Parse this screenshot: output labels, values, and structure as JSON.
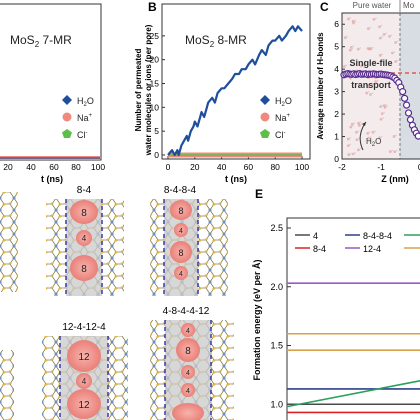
{
  "panels": {
    "b": {
      "letter": "B"
    },
    "c": {
      "letter": "C"
    },
    "e": {
      "letter": "E"
    }
  },
  "panel_a_partial": {
    "title_main": "MoS",
    "title_sub": "2",
    "title_rest": " 7-MR",
    "legend": [
      {
        "label": "H",
        "sub": "2",
        "rest": "O",
        "color": "#1f4e9c",
        "shape": "diamond"
      },
      {
        "label": "Na",
        "sup": "+",
        "color": "#f08a7e",
        "shape": "hexagon"
      },
      {
        "label": "Cl",
        "sup": "-",
        "color": "#5cbf4a",
        "shape": "pentagon"
      }
    ],
    "x_ticks": [
      "20",
      "40",
      "60",
      "80",
      "100"
    ],
    "xlabel": "t (ns)"
  },
  "structure_labels": {
    "col1": [
      {
        "title": "8-4",
        "rings": [
          "8",
          "4",
          "8"
        ]
      },
      {
        "title": "12-4-12-4",
        "rings": [
          "12",
          "4",
          "12"
        ]
      }
    ],
    "col2": [
      {
        "title": "8-4-8-4",
        "rings": [
          "8",
          "4",
          "8",
          "4"
        ]
      },
      {
        "title": "4-8-4-4-12",
        "rings": [
          "4",
          "8",
          "4",
          "4"
        ]
      }
    ]
  },
  "panel_c_partial": {
    "ylabel": "Average number of H-bonds",
    "y_ticks": [
      "0",
      "1",
      "2",
      "3",
      "4",
      "5",
      "6"
    ],
    "x_ticks": [
      "-2",
      "-1",
      "0"
    ],
    "xlabel": "Z (nm)",
    "header_left": "Pure water",
    "header_right": "Mo",
    "annotation": "Single-file water transport",
    "annotation_lines": [
      "Single-file",
      "water",
      "transport"
    ],
    "molecule_label": "H",
    "molecule_sub": "2",
    "molecule_rest": "O"
  },
  "panel_e_partial": {
    "ylabel": "Formation energy (eV per Å)",
    "y_ticks": [
      "1.0",
      "1.5",
      "2.0",
      "2.5"
    ],
    "legend": [
      {
        "label": "4",
        "color": "#1f4e9c"
      },
      {
        "label": "8-4",
        "color": "#e02020"
      },
      {
        "label": "8-4-8-4",
        "color": "#2f3f8f"
      },
      {
        "label": "12-4",
        "color": "#9b59c6"
      }
    ]
  },
  "chart_data": [
    {
      "id": "panel-b",
      "type": "line",
      "title": "MoS2 8-MR",
      "title_parts": {
        "main": "MoS",
        "sub": "2",
        "rest": " 8-MR"
      },
      "xlabel": "t (ns)",
      "ylabel_lines": [
        "Number of permeated",
        "water molecules or ions (per pore)"
      ],
      "xlim": [
        0,
        100
      ],
      "ylim": [
        0,
        30
      ],
      "x_ticks": [
        0,
        20,
        40,
        60,
        80,
        100
      ],
      "y_ticks": [
        0,
        5,
        10,
        15,
        20,
        25
      ],
      "legend_position": "right",
      "series": [
        {
          "name": "H2O",
          "color": "#1f4e9c",
          "marker": "diamond",
          "x": [
            0,
            3,
            5,
            7,
            8,
            10,
            12,
            14,
            15,
            17,
            19,
            20,
            22,
            24,
            25,
            27,
            29,
            30,
            33,
            35,
            37,
            40,
            42,
            45,
            48,
            50,
            53,
            55,
            58,
            60,
            63,
            65,
            68,
            70,
            73,
            75,
            78,
            80,
            83,
            85,
            88,
            90,
            93,
            95,
            97,
            100
          ],
          "y": [
            0,
            1,
            0,
            1,
            0,
            2,
            3,
            4,
            3,
            5,
            6,
            7,
            6,
            8,
            9,
            8,
            10,
            11,
            12,
            11,
            13,
            14,
            14,
            15,
            16,
            17,
            17,
            18,
            18,
            19,
            20,
            19,
            21,
            22,
            21,
            23,
            24,
            24,
            25,
            24,
            25,
            26,
            27,
            26,
            27,
            26
          ]
        },
        {
          "name": "Na+",
          "color": "#f08a7e",
          "marker": "hexagon",
          "x": [
            0,
            100
          ],
          "y": [
            0,
            0
          ]
        },
        {
          "name": "Cl-",
          "color": "#5cbf4a",
          "marker": "pentagon",
          "x": [
            0,
            100
          ],
          "y": [
            0,
            0
          ]
        }
      ]
    },
    {
      "id": "panel-c",
      "type": "scatter",
      "xlabel": "Z (nm)",
      "ylabel": "Average number of H-bonds",
      "xlim": [
        -2,
        0.3
      ],
      "ylim": [
        0,
        6.5
      ],
      "series": [
        {
          "color": "#5a2d91",
          "x": [
            -1.95,
            -1.9,
            -1.85,
            -1.8,
            -1.75,
            -1.7,
            -1.65,
            -1.6,
            -1.55,
            -1.5,
            -1.45,
            -1.4,
            -1.35,
            -1.3,
            -1.25,
            -1.2,
            -1.15,
            -1.1,
            -1.05,
            -1.0,
            -0.95,
            -0.9,
            -0.85,
            -0.8,
            -0.75,
            -0.7,
            -0.65,
            -0.6,
            -0.55,
            -0.5,
            -0.45,
            -0.4,
            -0.35,
            -0.3,
            -0.25,
            -0.2,
            -0.15,
            -0.1,
            -0.05,
            0.0,
            0.05,
            0.1,
            0.15,
            0.2
          ],
          "y": [
            3.75,
            3.78,
            3.8,
            3.78,
            3.77,
            3.79,
            3.76,
            3.78,
            3.8,
            3.77,
            3.78,
            3.79,
            3.76,
            3.78,
            3.77,
            3.79,
            3.78,
            3.76,
            3.77,
            3.78,
            3.76,
            3.75,
            3.74,
            3.72,
            3.7,
            3.65,
            3.6,
            3.5,
            3.4,
            3.2,
            3.0,
            2.7,
            2.4,
            2.05,
            1.75,
            1.5,
            1.3,
            1.15,
            1.02,
            0.95,
            0.9,
            0.88,
            0.87,
            0.86
          ]
        }
      ]
    },
    {
      "id": "panel-e",
      "type": "line",
      "ylabel": "Formation energy (eV per Å)",
      "ylim": [
        0.9,
        2.5
      ],
      "xlim": [
        0,
        1
      ],
      "series": [
        {
          "name": "4",
          "color": "#4a4a4a",
          "x": [
            0,
            1
          ],
          "y": [
            1.0,
            1.0
          ]
        },
        {
          "name": "8-4",
          "color": "#e02020",
          "x": [
            0,
            1
          ],
          "y": [
            0.93,
            0.93
          ]
        },
        {
          "name": "8-4-8-4",
          "color": "#2f3f8f",
          "x": [
            0,
            1
          ],
          "y": [
            1.13,
            1.13
          ]
        },
        {
          "name": "12-4",
          "color": "#9b59c6",
          "x": [
            0,
            1
          ],
          "y": [
            2.03,
            2.03
          ]
        },
        {
          "color": "#d9a24a",
          "x": [
            0,
            1
          ],
          "y": [
            1.6,
            1.6
          ]
        },
        {
          "color": "#d9a24a",
          "x": [
            0,
            1
          ],
          "y": [
            1.46,
            1.46
          ]
        },
        {
          "color": "#2ca05a",
          "x": [
            0,
            1
          ],
          "y": [
            0.98,
            1.2
          ]
        }
      ]
    }
  ]
}
